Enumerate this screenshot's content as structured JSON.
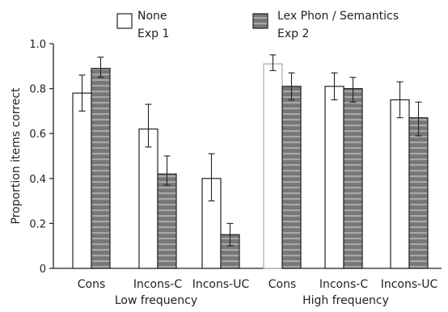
{
  "chart_data": {
    "type": "bar",
    "ylabel": "Proportion items correct",
    "ylim": [
      0,
      1.0
    ],
    "yticks": [
      "0",
      "0.2",
      "0.4",
      "0.6",
      "0.8",
      "1.0"
    ],
    "grid": false,
    "legend_position": "top",
    "categories": [
      "Cons",
      "Incons-C",
      "Incons-UC",
      "Cons",
      "Incons-C",
      "Incons-UC"
    ],
    "groups": [
      {
        "label": "Low frequency",
        "category_indices": [
          0,
          1,
          2
        ]
      },
      {
        "label": "High frequency",
        "category_indices": [
          3,
          4,
          5
        ]
      }
    ],
    "series": [
      {
        "name": "None",
        "name_line2": "Exp 1",
        "fill": "#ffffff",
        "values": [
          0.78,
          0.62,
          0.4,
          0.91,
          0.81,
          0.75
        ],
        "err_low": [
          0.7,
          0.54,
          0.3,
          0.88,
          0.75,
          0.67
        ],
        "err_high": [
          0.86,
          0.73,
          0.51,
          0.95,
          0.87,
          0.83
        ]
      },
      {
        "name": "Lex Phon / Semantics",
        "name_line2": "Exp 2",
        "fill": "#777777",
        "stripe": "#a8a8a8",
        "values": [
          0.89,
          0.42,
          0.15,
          0.81,
          0.8,
          0.67
        ],
        "err_low": [
          0.85,
          0.37,
          0.1,
          0.75,
          0.74,
          0.59
        ],
        "err_high": [
          0.94,
          0.5,
          0.2,
          0.87,
          0.85,
          0.74
        ]
      }
    ],
    "highlight_bar": {
      "series": 0,
      "category": 3,
      "edge_color": "#aaaaaa"
    }
  }
}
